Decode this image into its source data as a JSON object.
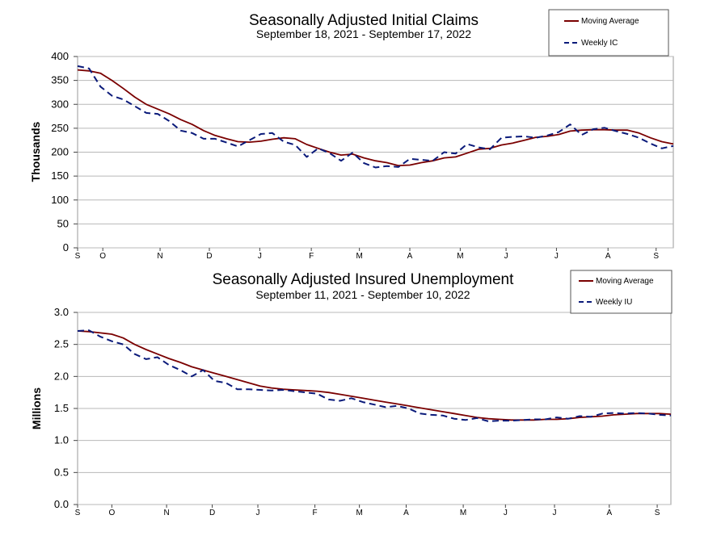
{
  "chart_data": [
    {
      "type": "line",
      "title": "Seasonally Adjusted Initial Claims",
      "subtitle": "September 18, 2021 - September 17, 2022",
      "ylabel": "Thousands",
      "ylim": [
        0,
        400
      ],
      "yticks": [
        "0",
        "50",
        "100",
        "150",
        "200",
        "250",
        "300",
        "350",
        "400"
      ],
      "x_ticks": [
        {
          "label": "S",
          "week": 0
        },
        {
          "label": "O",
          "week": 2.2
        },
        {
          "label": "N",
          "week": 7.2
        },
        {
          "label": "D",
          "week": 11.5
        },
        {
          "label": "J",
          "week": 15.9
        },
        {
          "label": "F",
          "week": 20.4
        },
        {
          "label": "M",
          "week": 24.6
        },
        {
          "label": "A",
          "week": 29
        },
        {
          "label": "M",
          "week": 33.4
        },
        {
          "label": "J",
          "week": 37.4
        },
        {
          "label": "J",
          "week": 41.8
        },
        {
          "label": "A",
          "week": 46.3
        },
        {
          "label": "S",
          "week": 50.5
        }
      ],
      "grid": "horizontal",
      "legend": "top-right",
      "series": [
        {
          "name": "Moving Average",
          "color": "#7a0000",
          "style": "solid",
          "values": [
            372,
            370,
            365,
            350,
            333,
            315,
            300,
            290,
            280,
            268,
            258,
            245,
            235,
            228,
            222,
            221,
            223,
            227,
            230,
            228,
            216,
            208,
            200,
            194,
            196,
            188,
            182,
            178,
            172,
            173,
            178,
            182,
            188,
            190,
            198,
            206,
            208,
            215,
            219,
            225,
            231,
            233,
            237,
            244,
            246,
            247,
            247,
            246,
            246,
            240,
            230,
            222,
            217
          ]
        },
        {
          "name": "Weekly IC",
          "color": "#0a1a7a",
          "style": "dashed",
          "values": [
            380,
            375,
            337,
            318,
            310,
            296,
            282,
            280,
            265,
            245,
            240,
            228,
            228,
            220,
            212,
            225,
            238,
            240,
            222,
            215,
            190,
            208,
            198,
            182,
            199,
            177,
            168,
            171,
            169,
            186,
            184,
            182,
            200,
            197,
            217,
            210,
            206,
            230,
            232,
            233,
            230,
            235,
            242,
            258,
            236,
            248,
            251,
            244,
            238,
            230,
            218,
            208,
            213
          ]
        }
      ]
    },
    {
      "type": "line",
      "title": "Seasonally Adjusted Insured Unemployment",
      "subtitle": "September 11, 2021 - September 10, 2022",
      "ylabel": "Millions",
      "ylim": [
        0,
        3
      ],
      "yticks": [
        "0.0",
        "0.5",
        "1.0",
        "1.5",
        "2.0",
        "2.5",
        "3.0"
      ],
      "x_ticks": [
        {
          "label": "S",
          "week": 0
        },
        {
          "label": "O",
          "week": 3
        },
        {
          "label": "N",
          "week": 7.8
        },
        {
          "label": "D",
          "week": 11.8
        },
        {
          "label": "J",
          "week": 15.8
        },
        {
          "label": "F",
          "week": 20.8
        },
        {
          "label": "M",
          "week": 24.7
        },
        {
          "label": "A",
          "week": 28.8
        },
        {
          "label": "M",
          "week": 33.8
        },
        {
          "label": "J",
          "week": 37.5
        },
        {
          "label": "J",
          "week": 41.8
        },
        {
          "label": "A",
          "week": 46.6
        },
        {
          "label": "S",
          "week": 50.8
        }
      ],
      "grid": "horizontal",
      "legend": "top-right",
      "series": [
        {
          "name": "Moving Average",
          "color": "#7a0000",
          "style": "solid",
          "values": [
            2.71,
            2.7,
            2.68,
            2.66,
            2.6,
            2.5,
            2.42,
            2.35,
            2.28,
            2.22,
            2.15,
            2.1,
            2.05,
            2.0,
            1.95,
            1.9,
            1.85,
            1.82,
            1.8,
            1.79,
            1.78,
            1.77,
            1.75,
            1.72,
            1.69,
            1.66,
            1.63,
            1.6,
            1.57,
            1.54,
            1.51,
            1.48,
            1.45,
            1.42,
            1.39,
            1.36,
            1.34,
            1.33,
            1.32,
            1.32,
            1.32,
            1.33,
            1.33,
            1.34,
            1.36,
            1.37,
            1.38,
            1.4,
            1.41,
            1.42,
            1.42,
            1.42,
            1.41
          ]
        },
        {
          "name": "Weekly IU",
          "color": "#0a1a7a",
          "style": "dashed",
          "values": [
            2.71,
            2.72,
            2.62,
            2.55,
            2.5,
            2.35,
            2.27,
            2.3,
            2.18,
            2.1,
            2.0,
            2.1,
            1.93,
            1.9,
            1.8,
            1.8,
            1.79,
            1.78,
            1.79,
            1.77,
            1.75,
            1.73,
            1.64,
            1.62,
            1.66,
            1.6,
            1.56,
            1.52,
            1.54,
            1.5,
            1.42,
            1.4,
            1.39,
            1.34,
            1.32,
            1.35,
            1.3,
            1.31,
            1.31,
            1.32,
            1.33,
            1.33,
            1.36,
            1.34,
            1.38,
            1.37,
            1.42,
            1.43,
            1.42,
            1.43,
            1.42,
            1.4,
            1.39
          ]
        }
      ]
    }
  ]
}
